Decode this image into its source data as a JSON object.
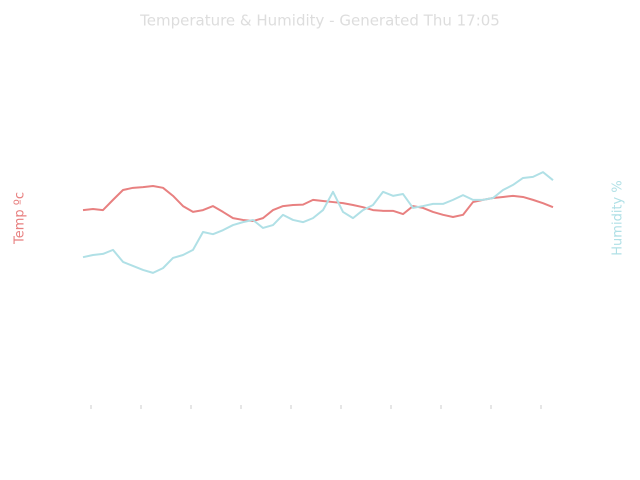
{
  "chart_data": {
    "type": "line",
    "title": "Temperature & Humidity - Generated Thu 17:05",
    "ylabel": "Temp ºc",
    "y2label": "Humidity %",
    "x": [
      0,
      1,
      2,
      3,
      4,
      5,
      6,
      7,
      8,
      9,
      10,
      11,
      12,
      13,
      14,
      15,
      16,
      17,
      18,
      19,
      20,
      21,
      22,
      23,
      24,
      25,
      26,
      27,
      28,
      29,
      30,
      31,
      32,
      33,
      34,
      35,
      36,
      37,
      38,
      39,
      40,
      41,
      42,
      43,
      44,
      45,
      46,
      47
    ],
    "xlim": [
      0,
      47
    ],
    "xticks": [
      0.8,
      5.8,
      10.8,
      15.8,
      20.8,
      25.8,
      30.8,
      35.8,
      40.8,
      45.8
    ],
    "ylim": [
      0,
      100
    ],
    "y2lim": [
      0,
      100
    ],
    "series": [
      {
        "name": "Temp ºc",
        "color": "#e88080",
        "values": [
          53.4,
          53.7,
          53.4,
          56.2,
          58.9,
          59.5,
          59.7,
          60.0,
          59.5,
          57.3,
          54.5,
          52.9,
          53.4,
          54.5,
          52.9,
          51.2,
          50.7,
          50.4,
          51.2,
          53.4,
          54.5,
          54.8,
          54.9,
          56.2,
          55.9,
          55.6,
          55.3,
          54.8,
          54.2,
          53.4,
          53.2,
          53.2,
          52.3,
          54.5,
          54.0,
          52.9,
          52.1,
          51.5,
          52.1,
          55.6,
          56.2,
          56.7,
          57.0,
          57.3,
          57.0,
          56.2,
          55.3,
          54.2
        ]
      },
      {
        "name": "Humidity %",
        "color": "#b0e0e6",
        "axis": "y2",
        "values": [
          40.5,
          41.1,
          41.4,
          42.5,
          39.2,
          38.1,
          37.0,
          36.2,
          37.5,
          40.3,
          41.1,
          42.5,
          47.4,
          46.8,
          47.9,
          49.3,
          50.1,
          50.7,
          48.5,
          49.3,
          52.1,
          50.7,
          50.1,
          51.2,
          53.4,
          58.4,
          52.9,
          51.2,
          53.4,
          54.8,
          58.4,
          57.3,
          57.8,
          54.0,
          54.5,
          55.1,
          55.1,
          56.2,
          57.5,
          56.2,
          56.2,
          56.7,
          58.9,
          60.3,
          62.2,
          62.5,
          63.8,
          61.6
        ]
      }
    ]
  }
}
